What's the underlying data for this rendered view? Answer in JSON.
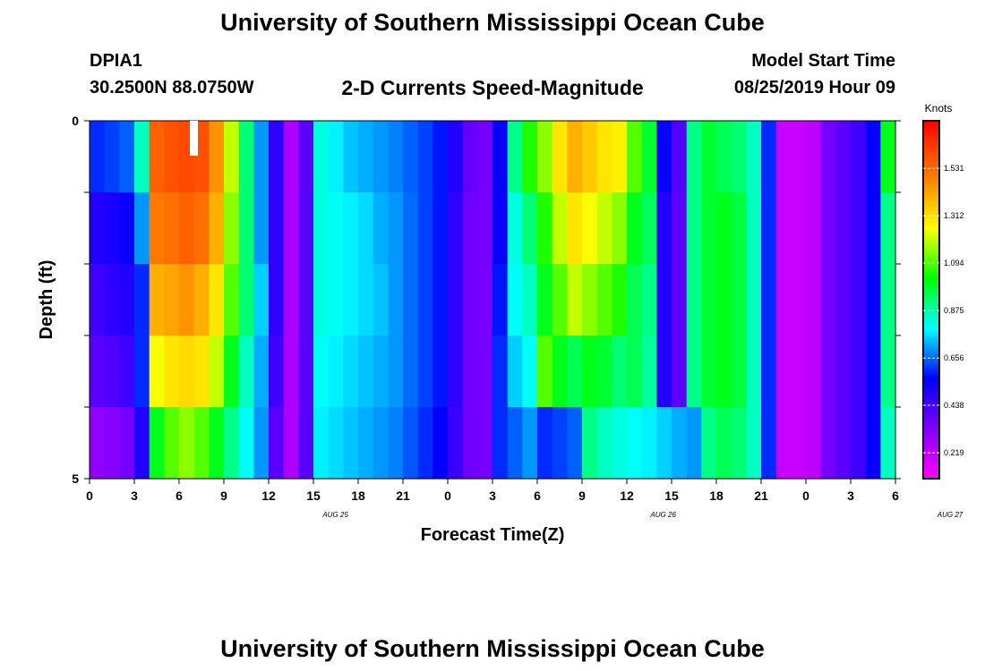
{
  "header": {
    "title": "University of Southern Mississippi Ocean Cube",
    "station_id": "DPIA1",
    "coords": "30.2500N 88.0750W",
    "subtitle": "2-D Currents Speed-Magnitude",
    "model_start_label": "Model Start Time",
    "model_start_value": "08/25/2019 Hour 09"
  },
  "footer": {
    "title": "University of Southern Mississippi Ocean Cube"
  },
  "chart_data": {
    "type": "heatmap",
    "title": "2-D Currents Speed-Magnitude",
    "xlabel": "Forecast Time(Z)",
    "ylabel": "Depth (ft)",
    "units_label": "Knots",
    "x_tick_labels": [
      "0",
      "3",
      "6",
      "9",
      "12",
      "15",
      "18",
      "21",
      "0",
      "3",
      "6",
      "9",
      "12",
      "15",
      "18",
      "21",
      "0",
      "3",
      "6"
    ],
    "date_labels": [
      {
        "text": "AUG  25",
        "x_hour": 18
      },
      {
        "text": "AUG  26",
        "x_hour": 42
      },
      {
        "text": "AUG  27",
        "x_hour": 63
      }
    ],
    "x_range_hours": [
      0,
      54
    ],
    "ylim": [
      0,
      5
    ],
    "y_tick_labels": [
      "0",
      "5"
    ],
    "y_minor_ticks": 5,
    "depth_levels": 5,
    "colorbar": {
      "min": 0.1,
      "max": 1.75,
      "ticks": [
        0.219,
        0.438,
        0.656,
        0.875,
        1.094,
        1.312,
        1.531
      ],
      "tick_labels": [
        "0.219",
        "0.438",
        "0.656",
        "0.875",
        "1.094",
        "1.312",
        "1.531"
      ]
    },
    "speed_knots": [
      [
        0.6,
        0.62,
        0.65,
        0.85,
        1.55,
        1.58,
        1.6,
        1.58,
        1.45,
        1.2,
        0.92,
        0.7,
        0.48,
        0.25,
        0.4,
        0.82,
        0.78,
        0.74,
        0.72,
        0.7,
        0.68,
        0.65,
        0.62,
        0.58,
        0.5,
        0.38,
        0.35,
        0.55,
        0.9,
        1.05,
        1.15,
        1.3,
        1.4,
        1.35,
        1.3,
        1.28,
        1.1,
        0.98,
        0.55,
        0.42,
        0.9,
        0.98,
        0.95,
        0.92,
        0.85,
        0.6,
        0.2,
        0.2,
        0.22,
        0.35,
        0.4,
        0.45,
        0.55,
        1.0
      ],
      [
        0.5,
        0.52,
        0.55,
        0.7,
        1.5,
        1.52,
        1.55,
        1.52,
        1.4,
        1.15,
        0.92,
        0.7,
        0.48,
        0.25,
        0.4,
        0.82,
        0.8,
        0.78,
        0.76,
        0.72,
        0.7,
        0.66,
        0.62,
        0.58,
        0.48,
        0.36,
        0.35,
        0.55,
        0.82,
        0.92,
        1.05,
        1.2,
        1.3,
        1.25,
        1.2,
        1.15,
        1.0,
        0.94,
        0.5,
        0.4,
        0.9,
        0.98,
        1.0,
        0.97,
        0.85,
        0.6,
        0.2,
        0.2,
        0.22,
        0.35,
        0.4,
        0.45,
        0.55,
        0.9
      ],
      [
        0.45,
        0.48,
        0.5,
        0.6,
        1.4,
        1.42,
        1.45,
        1.4,
        1.3,
        1.1,
        0.92,
        0.75,
        0.48,
        0.25,
        0.4,
        0.82,
        0.8,
        0.78,
        0.76,
        0.74,
        0.7,
        0.66,
        0.62,
        0.58,
        0.48,
        0.36,
        0.35,
        0.58,
        0.8,
        0.85,
        1.0,
        1.1,
        1.2,
        1.15,
        1.1,
        1.05,
        0.95,
        0.9,
        0.5,
        0.4,
        0.9,
        0.98,
        1.0,
        0.97,
        0.85,
        0.6,
        0.2,
        0.2,
        0.22,
        0.35,
        0.4,
        0.45,
        0.55,
        0.9
      ],
      [
        0.4,
        0.42,
        0.45,
        0.6,
        1.25,
        1.3,
        1.32,
        1.3,
        1.2,
        1.0,
        0.85,
        0.72,
        0.45,
        0.25,
        0.4,
        0.8,
        0.78,
        0.76,
        0.74,
        0.72,
        0.7,
        0.66,
        0.62,
        0.58,
        0.48,
        0.36,
        0.35,
        0.6,
        0.75,
        0.8,
        1.1,
        1.0,
        0.95,
        1.0,
        0.98,
        0.92,
        0.95,
        0.88,
        0.5,
        0.4,
        0.9,
        0.98,
        1.0,
        0.97,
        0.85,
        0.6,
        0.2,
        0.2,
        0.22,
        0.35,
        0.4,
        0.45,
        0.55,
        0.9
      ],
      [
        0.3,
        0.32,
        0.35,
        0.5,
        1.0,
        1.1,
        1.15,
        1.1,
        1.0,
        0.9,
        0.8,
        0.7,
        0.4,
        0.25,
        0.4,
        0.78,
        0.76,
        0.74,
        0.72,
        0.7,
        0.68,
        0.64,
        0.6,
        0.56,
        0.46,
        0.36,
        0.35,
        0.6,
        0.65,
        0.7,
        0.6,
        0.62,
        0.65,
        0.9,
        0.85,
        0.82,
        0.8,
        0.78,
        0.75,
        0.72,
        0.7,
        0.9,
        0.95,
        0.92,
        0.85,
        0.6,
        0.2,
        0.2,
        0.22,
        0.35,
        0.4,
        0.45,
        0.55,
        0.85
      ]
    ]
  }
}
